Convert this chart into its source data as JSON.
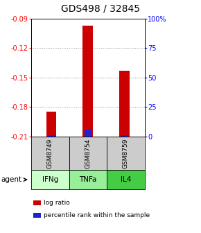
{
  "title": "GDS498 / 32845",
  "samples": [
    "GSM8749",
    "GSM8754",
    "GSM8759"
  ],
  "agents": [
    "IFNg",
    "TNFa",
    "IL4"
  ],
  "log_ratios": [
    -0.185,
    -0.097,
    -0.143
  ],
  "percentile_ranks": [
    0.8,
    5.5,
    1.2
  ],
  "ymin": -0.21,
  "ymax": -0.09,
  "yticks_left": [
    -0.21,
    -0.18,
    -0.15,
    -0.12,
    -0.09
  ],
  "right_ytick_pcts": [
    0,
    25,
    50,
    75,
    100
  ],
  "log_ratio_color": "#cc0000",
  "percentile_color": "#2222cc",
  "agent_colors": [
    "#ccffcc",
    "#99ee99",
    "#44cc44"
  ],
  "sample_bg_color": "#cccccc",
  "legend_log_ratio": "log ratio",
  "legend_percentile": "percentile rank within the sample",
  "agent_label": "agent",
  "title_fontsize": 10,
  "tick_fontsize": 7,
  "label_fontsize": 7,
  "grid_color": "#888888"
}
